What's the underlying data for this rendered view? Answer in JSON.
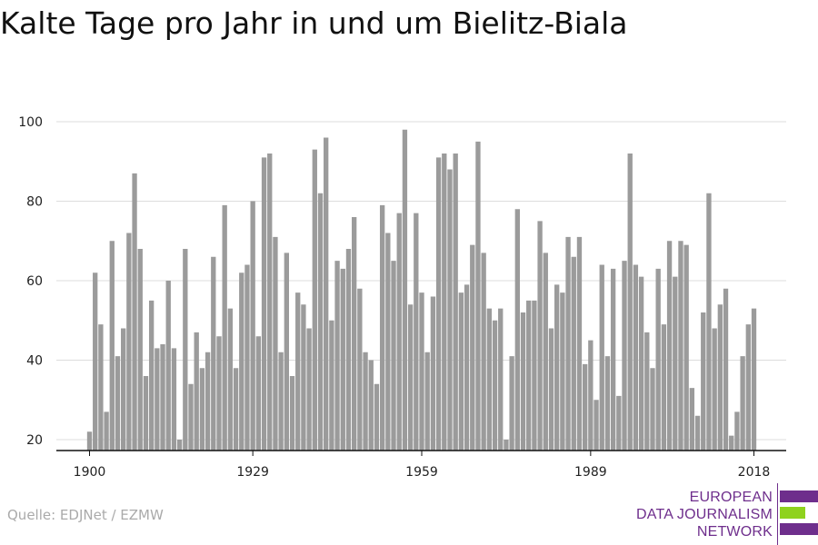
{
  "title": "Kalte Tage pro Jahr in und um Bielitz-Biala",
  "source": "Quelle: EDJNet / EZMW",
  "logo": {
    "lines": [
      "EUROPEAN",
      "DATA JOURNALISM",
      "NETWORK"
    ],
    "colors": {
      "purple": "#6e2e8c",
      "green": "#8fd21e"
    }
  },
  "colors": {
    "bar": "#9b9b9b",
    "grid": "#dddddd",
    "axis": "#111111"
  },
  "chart_data": {
    "type": "bar",
    "title": "Kalte Tage pro Jahr in und um Bielitz-Biala",
    "xlabel": "",
    "ylabel": "",
    "ylim": [
      20,
      100
    ],
    "yticks": [
      20,
      40,
      60,
      80,
      100
    ],
    "xticks": [
      1900,
      1929,
      1959,
      1989,
      2018
    ],
    "grid": true,
    "x": [
      1900,
      1901,
      1902,
      1903,
      1904,
      1905,
      1906,
      1907,
      1908,
      1909,
      1910,
      1911,
      1912,
      1913,
      1914,
      1915,
      1916,
      1917,
      1918,
      1919,
      1920,
      1921,
      1922,
      1923,
      1924,
      1925,
      1926,
      1927,
      1928,
      1929,
      1930,
      1931,
      1932,
      1933,
      1934,
      1935,
      1936,
      1937,
      1938,
      1939,
      1940,
      1941,
      1942,
      1943,
      1944,
      1945,
      1946,
      1947,
      1948,
      1949,
      1950,
      1951,
      1952,
      1953,
      1954,
      1955,
      1956,
      1957,
      1958,
      1959,
      1960,
      1961,
      1962,
      1963,
      1964,
      1965,
      1966,
      1967,
      1968,
      1969,
      1970,
      1971,
      1972,
      1973,
      1974,
      1975,
      1976,
      1977,
      1978,
      1979,
      1980,
      1981,
      1982,
      1983,
      1984,
      1985,
      1986,
      1987,
      1988,
      1989,
      1990,
      1991,
      1992,
      1993,
      1994,
      1995,
      1996,
      1997,
      1998,
      1999,
      2000,
      2001,
      2002,
      2003,
      2004,
      2005,
      2006,
      2007,
      2008,
      2009,
      2010,
      2011,
      2012,
      2013,
      2014,
      2015,
      2016,
      2017,
      2018
    ],
    "values": [
      22,
      62,
      49,
      27,
      70,
      41,
      48,
      72,
      87,
      68,
      36,
      55,
      43,
      44,
      60,
      43,
      20,
      68,
      34,
      47,
      38,
      42,
      66,
      46,
      79,
      53,
      38,
      62,
      64,
      80,
      46,
      91,
      92,
      71,
      42,
      67,
      36,
      57,
      54,
      48,
      93,
      82,
      96,
      50,
      65,
      63,
      68,
      76,
      58,
      42,
      40,
      34,
      79,
      72,
      65,
      77,
      98,
      54,
      77,
      57,
      42,
      56,
      91,
      92,
      88,
      92,
      57,
      59,
      69,
      95,
      67,
      53,
      50,
      53,
      20,
      41,
      78,
      52,
      55,
      55,
      75,
      67,
      48,
      59,
      57,
      71,
      66,
      71,
      39,
      45,
      30,
      64,
      41,
      63,
      31,
      65,
      92,
      64,
      61,
      47,
      38,
      63,
      49,
      70,
      61,
      70,
      69,
      33,
      26,
      52,
      82,
      48,
      54,
      58,
      21,
      27,
      41,
      49,
      53
    ]
  }
}
